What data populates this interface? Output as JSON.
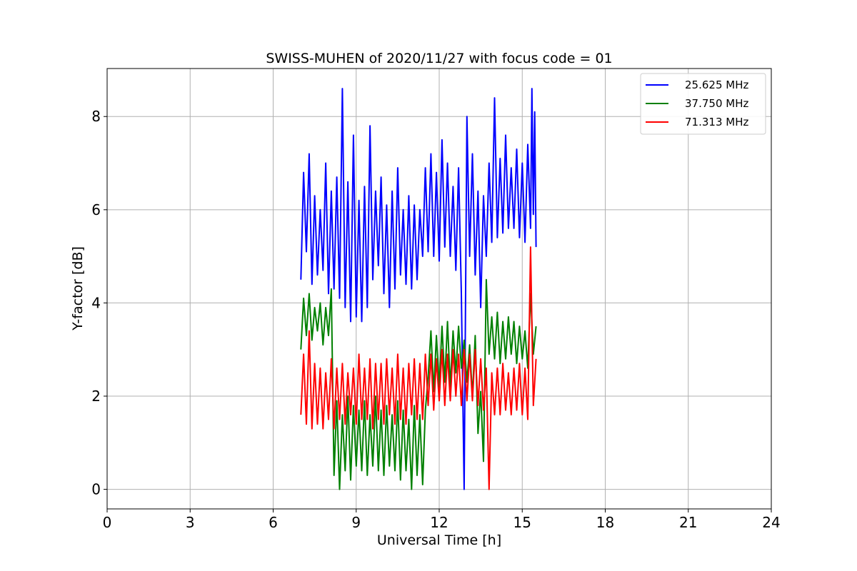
{
  "chart_data": {
    "type": "line",
    "title": "SWISS-MUHEN of 2020/11/27 with focus code = 01",
    "xlabel": "Universal Time [h]",
    "ylabel": "Y-factor [dB]",
    "xlim": [
      0,
      24
    ],
    "ylim": [
      -0.42,
      9.03
    ],
    "xticks": [
      0,
      3,
      6,
      9,
      12,
      15,
      18,
      21,
      24
    ],
    "yticks": [
      0,
      2,
      4,
      6,
      8
    ],
    "grid": true,
    "legend_position": "top-right",
    "series": [
      {
        "name": "25.625 MHz",
        "color": "#0000ff",
        "points": [
          [
            7.0,
            4.5
          ],
          [
            7.1,
            6.8
          ],
          [
            7.2,
            5.1
          ],
          [
            7.3,
            7.2
          ],
          [
            7.4,
            4.4
          ],
          [
            7.5,
            6.3
          ],
          [
            7.6,
            4.6
          ],
          [
            7.7,
            6.0
          ],
          [
            7.8,
            4.7
          ],
          [
            7.9,
            7.0
          ],
          [
            8.0,
            4.2
          ],
          [
            8.1,
            6.4
          ],
          [
            8.2,
            4.3
          ],
          [
            8.3,
            6.7
          ],
          [
            8.4,
            4.1
          ],
          [
            8.5,
            8.6
          ],
          [
            8.6,
            3.9
          ],
          [
            8.7,
            6.6
          ],
          [
            8.8,
            3.6
          ],
          [
            8.9,
            7.6
          ],
          [
            9.0,
            3.7
          ],
          [
            9.1,
            6.2
          ],
          [
            9.2,
            3.6
          ],
          [
            9.3,
            6.5
          ],
          [
            9.4,
            3.9
          ],
          [
            9.5,
            7.8
          ],
          [
            9.6,
            4.5
          ],
          [
            9.7,
            6.4
          ],
          [
            9.8,
            4.8
          ],
          [
            9.9,
            6.7
          ],
          [
            10.0,
            4.2
          ],
          [
            10.1,
            6.1
          ],
          [
            10.2,
            3.9
          ],
          [
            10.3,
            6.4
          ],
          [
            10.4,
            4.3
          ],
          [
            10.5,
            6.9
          ],
          [
            10.6,
            4.6
          ],
          [
            10.7,
            6.0
          ],
          [
            10.8,
            4.4
          ],
          [
            10.9,
            6.3
          ],
          [
            11.0,
            4.3
          ],
          [
            11.1,
            6.1
          ],
          [
            11.2,
            4.5
          ],
          [
            11.3,
            6.0
          ],
          [
            11.4,
            5.0
          ],
          [
            11.5,
            6.9
          ],
          [
            11.6,
            5.1
          ],
          [
            11.7,
            7.2
          ],
          [
            11.8,
            5.0
          ],
          [
            11.9,
            6.8
          ],
          [
            12.0,
            4.9
          ],
          [
            12.1,
            7.5
          ],
          [
            12.2,
            5.2
          ],
          [
            12.3,
            7.0
          ],
          [
            12.4,
            5.0
          ],
          [
            12.5,
            6.5
          ],
          [
            12.6,
            4.7
          ],
          [
            12.7,
            6.9
          ],
          [
            12.8,
            4.2
          ],
          [
            12.9,
            0.0
          ],
          [
            13.0,
            8.0
          ],
          [
            13.1,
            5.0
          ],
          [
            13.2,
            7.2
          ],
          [
            13.3,
            4.6
          ],
          [
            13.4,
            6.4
          ],
          [
            13.5,
            3.9
          ],
          [
            13.6,
            6.3
          ],
          [
            13.7,
            5.0
          ],
          [
            13.8,
            7.0
          ],
          [
            13.9,
            5.3
          ],
          [
            14.0,
            8.4
          ],
          [
            14.1,
            5.4
          ],
          [
            14.2,
            7.1
          ],
          [
            14.3,
            5.5
          ],
          [
            14.4,
            7.6
          ],
          [
            14.5,
            5.6
          ],
          [
            14.6,
            6.9
          ],
          [
            14.7,
            5.6
          ],
          [
            14.8,
            7.3
          ],
          [
            14.9,
            5.4
          ],
          [
            15.0,
            7.0
          ],
          [
            15.1,
            5.3
          ],
          [
            15.2,
            7.4
          ],
          [
            15.3,
            5.6
          ],
          [
            15.35,
            8.6
          ],
          [
            15.4,
            5.9
          ],
          [
            15.45,
            8.1
          ],
          [
            15.5,
            5.2
          ]
        ]
      },
      {
        "name": "37.750 MHz",
        "color": "#008000",
        "points": [
          [
            7.0,
            3.0
          ],
          [
            7.1,
            4.1
          ],
          [
            7.2,
            3.3
          ],
          [
            7.3,
            4.2
          ],
          [
            7.4,
            3.2
          ],
          [
            7.5,
            3.9
          ],
          [
            7.6,
            3.4
          ],
          [
            7.7,
            4.0
          ],
          [
            7.8,
            3.1
          ],
          [
            7.9,
            3.9
          ],
          [
            8.0,
            3.3
          ],
          [
            8.1,
            4.3
          ],
          [
            8.2,
            0.3
          ],
          [
            8.3,
            1.9
          ],
          [
            8.4,
            0.0
          ],
          [
            8.5,
            1.6
          ],
          [
            8.6,
            0.4
          ],
          [
            8.7,
            2.0
          ],
          [
            8.8,
            0.2
          ],
          [
            8.9,
            1.8
          ],
          [
            9.0,
            0.5
          ],
          [
            9.1,
            1.7
          ],
          [
            9.2,
            0.4
          ],
          [
            9.3,
            1.9
          ],
          [
            9.4,
            0.3
          ],
          [
            9.5,
            1.6
          ],
          [
            9.6,
            0.5
          ],
          [
            9.7,
            2.0
          ],
          [
            9.8,
            0.4
          ],
          [
            9.9,
            1.7
          ],
          [
            10.0,
            0.3
          ],
          [
            10.1,
            1.8
          ],
          [
            10.2,
            0.5
          ],
          [
            10.3,
            1.6
          ],
          [
            10.4,
            0.4
          ],
          [
            10.5,
            1.9
          ],
          [
            10.6,
            0.2
          ],
          [
            10.7,
            1.7
          ],
          [
            10.8,
            0.4
          ],
          [
            10.9,
            1.5
          ],
          [
            11.0,
            0.0
          ],
          [
            11.1,
            1.8
          ],
          [
            11.2,
            0.3
          ],
          [
            11.3,
            1.6
          ],
          [
            11.4,
            0.1
          ],
          [
            11.5,
            1.7
          ],
          [
            11.6,
            2.4
          ],
          [
            11.7,
            3.4
          ],
          [
            11.8,
            2.1
          ],
          [
            11.9,
            3.3
          ],
          [
            12.0,
            2.2
          ],
          [
            12.1,
            3.5
          ],
          [
            12.2,
            2.3
          ],
          [
            12.3,
            3.6
          ],
          [
            12.4,
            2.2
          ],
          [
            12.5,
            3.4
          ],
          [
            12.6,
            2.5
          ],
          [
            12.7,
            3.5
          ],
          [
            12.8,
            2.6
          ],
          [
            12.9,
            3.2
          ],
          [
            13.0,
            2.3
          ],
          [
            13.1,
            3.1
          ],
          [
            13.2,
            2.0
          ],
          [
            13.3,
            3.3
          ],
          [
            13.4,
            1.2
          ],
          [
            13.5,
            2.1
          ],
          [
            13.6,
            0.6
          ],
          [
            13.7,
            4.5
          ],
          [
            13.8,
            2.9
          ],
          [
            13.9,
            3.7
          ],
          [
            14.0,
            2.8
          ],
          [
            14.1,
            3.8
          ],
          [
            14.2,
            2.7
          ],
          [
            14.3,
            3.6
          ],
          [
            14.4,
            2.8
          ],
          [
            14.5,
            3.7
          ],
          [
            14.6,
            2.9
          ],
          [
            14.7,
            3.6
          ],
          [
            14.8,
            2.7
          ],
          [
            14.9,
            3.5
          ],
          [
            15.0,
            2.8
          ],
          [
            15.1,
            3.4
          ],
          [
            15.2,
            2.6
          ],
          [
            15.3,
            4.2
          ],
          [
            15.4,
            2.9
          ],
          [
            15.5,
            3.5
          ]
        ]
      },
      {
        "name": "71.313 MHz",
        "color": "#ff0000",
        "points": [
          [
            7.0,
            1.6
          ],
          [
            7.1,
            2.9
          ],
          [
            7.2,
            1.4
          ],
          [
            7.3,
            3.4
          ],
          [
            7.4,
            1.3
          ],
          [
            7.5,
            2.7
          ],
          [
            7.6,
            1.4
          ],
          [
            7.7,
            2.6
          ],
          [
            7.8,
            1.3
          ],
          [
            7.9,
            2.5
          ],
          [
            8.0,
            1.5
          ],
          [
            8.1,
            2.8
          ],
          [
            8.2,
            1.3
          ],
          [
            8.3,
            2.6
          ],
          [
            8.4,
            1.5
          ],
          [
            8.5,
            2.7
          ],
          [
            8.6,
            1.4
          ],
          [
            8.7,
            2.5
          ],
          [
            8.8,
            1.6
          ],
          [
            8.9,
            2.6
          ],
          [
            9.0,
            1.4
          ],
          [
            9.1,
            2.9
          ],
          [
            9.2,
            1.5
          ],
          [
            9.3,
            2.6
          ],
          [
            9.4,
            1.5
          ],
          [
            9.5,
            2.8
          ],
          [
            9.6,
            1.3
          ],
          [
            9.7,
            2.7
          ],
          [
            9.8,
            1.5
          ],
          [
            9.9,
            2.7
          ],
          [
            10.0,
            1.4
          ],
          [
            10.1,
            2.8
          ],
          [
            10.2,
            1.6
          ],
          [
            10.3,
            2.6
          ],
          [
            10.4,
            1.4
          ],
          [
            10.5,
            2.9
          ],
          [
            10.6,
            1.5
          ],
          [
            10.7,
            2.6
          ],
          [
            10.8,
            1.4
          ],
          [
            10.9,
            2.7
          ],
          [
            11.0,
            1.6
          ],
          [
            11.1,
            2.8
          ],
          [
            11.2,
            1.5
          ],
          [
            11.3,
            2.7
          ],
          [
            11.4,
            1.5
          ],
          [
            11.5,
            2.9
          ],
          [
            11.6,
            1.8
          ],
          [
            11.7,
            2.9
          ],
          [
            11.8,
            1.7
          ],
          [
            11.9,
            2.8
          ],
          [
            12.0,
            1.9
          ],
          [
            12.1,
            3.0
          ],
          [
            12.2,
            1.8
          ],
          [
            12.3,
            2.9
          ],
          [
            12.4,
            1.9
          ],
          [
            12.5,
            3.0
          ],
          [
            12.6,
            2.0
          ],
          [
            12.7,
            2.9
          ],
          [
            12.8,
            1.8
          ],
          [
            12.9,
            3.0
          ],
          [
            13.0,
            1.9
          ],
          [
            13.1,
            2.9
          ],
          [
            13.2,
            1.9
          ],
          [
            13.3,
            3.0
          ],
          [
            13.4,
            1.8
          ],
          [
            13.5,
            2.8
          ],
          [
            13.6,
            1.7
          ],
          [
            13.7,
            2.6
          ],
          [
            13.8,
            0.0
          ],
          [
            13.9,
            2.5
          ],
          [
            14.0,
            1.6
          ],
          [
            14.1,
            2.6
          ],
          [
            14.2,
            1.6
          ],
          [
            14.3,
            2.7
          ],
          [
            14.4,
            1.7
          ],
          [
            14.5,
            2.5
          ],
          [
            14.6,
            1.6
          ],
          [
            14.7,
            2.6
          ],
          [
            14.8,
            1.7
          ],
          [
            14.9,
            2.7
          ],
          [
            15.0,
            1.6
          ],
          [
            15.1,
            2.6
          ],
          [
            15.2,
            1.5
          ],
          [
            15.3,
            5.2
          ],
          [
            15.4,
            1.8
          ],
          [
            15.5,
            2.8
          ]
        ]
      }
    ]
  }
}
